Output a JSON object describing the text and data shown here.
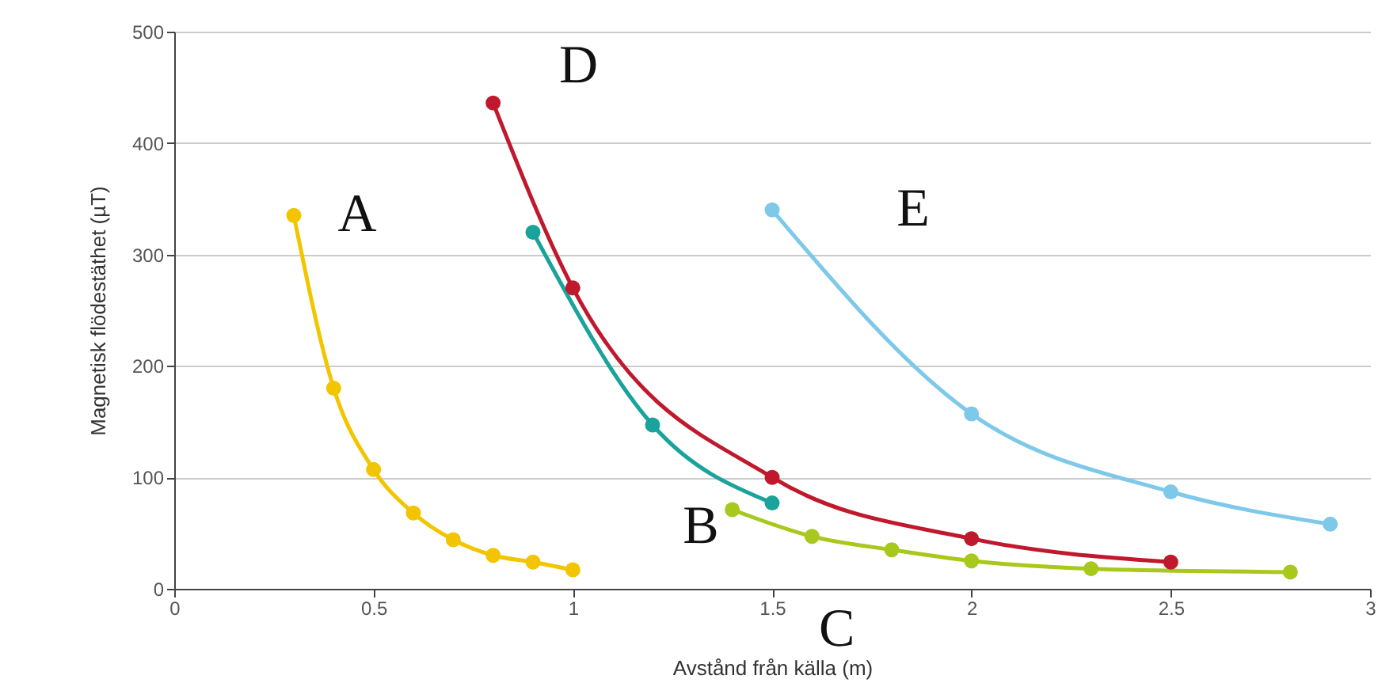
{
  "chart_data": {
    "type": "line",
    "xlabel": "Avstånd från källa (m)",
    "ylabel": "Magnetisk flödestäthet (µT)",
    "xlim": [
      0,
      3
    ],
    "xticks": [
      0,
      0.5,
      1,
      1.5,
      2,
      2.5,
      3
    ],
    "ylim": [
      0,
      500
    ],
    "yticks": [
      0,
      100,
      200,
      300,
      400,
      500
    ],
    "grid": "y",
    "marker": "circle",
    "line_style": "solid",
    "series": [
      {
        "name": "A",
        "color": "#f2c500",
        "x": [
          0.3,
          0.4,
          0.5,
          0.6,
          0.7,
          0.8,
          0.9,
          1.0
        ],
        "values": [
          335,
          180,
          107,
          68,
          44,
          30,
          24,
          17
        ]
      },
      {
        "name": "B",
        "color": "#1aa39a",
        "x": [
          0.9,
          1.2,
          1.5
        ],
        "values": [
          320,
          147,
          77
        ]
      },
      {
        "name": "C",
        "color": "#a8c81e",
        "x": [
          1.4,
          1.6,
          1.8,
          2.0,
          2.3,
          2.8
        ],
        "values": [
          71,
          47,
          35,
          25,
          18,
          15
        ]
      },
      {
        "name": "D",
        "color": "#c0182c",
        "x": [
          0.8,
          1.0,
          1.5,
          2.0,
          2.5
        ],
        "values": [
          436,
          270,
          100,
          45,
          24
        ]
      },
      {
        "name": "E",
        "color": "#7ec8ea",
        "x": [
          1.5,
          2.0,
          2.5,
          2.9
        ],
        "values": [
          340,
          157,
          87,
          58
        ]
      }
    ]
  }
}
